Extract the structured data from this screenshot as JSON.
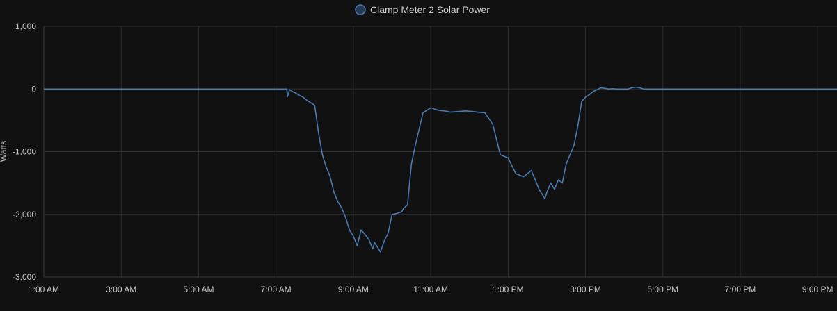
{
  "chart_data": {
    "type": "line",
    "title": "",
    "xlabel": "",
    "ylabel": "Watts",
    "ylim": [
      -3000,
      1000
    ],
    "xlim": [
      1,
      21.5
    ],
    "grid": true,
    "legend": "top-center",
    "x_tick_values": [
      1,
      3,
      5,
      7,
      9,
      11,
      13,
      15,
      17,
      19,
      21
    ],
    "x_tick_labels": [
      "1:00 AM",
      "3:00 AM",
      "5:00 AM",
      "7:00 AM",
      "9:00 AM",
      "11:00 AM",
      "1:00 PM",
      "3:00 PM",
      "5:00 PM",
      "7:00 PM",
      "9:00 PM"
    ],
    "y_tick_values": [
      1000,
      0,
      -1000,
      -2000,
      -3000
    ],
    "y_tick_labels": [
      "1,000",
      "0",
      "-1,000",
      "-2,000",
      "-3,000"
    ],
    "series": [
      {
        "name": "Clamp Meter 2 Solar Power",
        "color": "#4a7ab0",
        "legend_fill": "#243a55",
        "x": [
          1.0,
          7.28,
          7.3,
          7.35,
          7.4,
          7.45,
          7.5,
          7.6,
          7.7,
          7.8,
          7.9,
          8.0,
          8.1,
          8.2,
          8.3,
          8.35,
          8.4,
          8.5,
          8.6,
          8.7,
          8.8,
          8.9,
          9.0,
          9.1,
          9.2,
          9.3,
          9.4,
          9.5,
          9.55,
          9.6,
          9.7,
          9.8,
          9.9,
          10.0,
          10.1,
          10.15,
          10.2,
          10.25,
          10.3,
          10.4,
          10.5,
          10.6,
          10.8,
          11.0,
          11.2,
          11.35,
          11.45,
          11.5,
          11.6,
          11.7,
          11.8,
          11.9,
          12.0,
          12.1,
          12.2,
          12.4,
          12.6,
          12.8,
          13.0,
          13.2,
          13.4,
          13.6,
          13.8,
          13.95,
          14.0,
          14.1,
          14.2,
          14.3,
          14.4,
          14.5,
          14.6,
          14.7,
          14.8,
          14.9,
          15.0,
          15.1,
          15.2,
          15.3,
          15.4,
          15.5,
          15.6,
          15.7,
          15.8,
          15.9,
          16.0,
          16.1,
          16.2,
          16.3,
          16.4,
          16.5,
          16.6,
          16.7,
          16.8,
          16.9,
          17.0,
          17.1,
          17.2,
          17.25,
          21.5
        ],
        "values": [
          0,
          0,
          -120,
          -10,
          -30,
          -50,
          -60,
          -100,
          -130,
          -180,
          -220,
          -260,
          -700,
          -1050,
          -1250,
          -1320,
          -1400,
          -1650,
          -1800,
          -1900,
          -2050,
          -2250,
          -2350,
          -2500,
          -2250,
          -2320,
          -2400,
          -2550,
          -2450,
          -2500,
          -2600,
          -2420,
          -2300,
          -2000,
          -1990,
          -1980,
          -1970,
          -1960,
          -1900,
          -1850,
          -1200,
          -900,
          -380,
          -300,
          -340,
          -350,
          -360,
          -370,
          -365,
          -360,
          -355,
          -350,
          -355,
          -360,
          -370,
          -380,
          -560,
          -1050,
          -1100,
          -1350,
          -1400,
          -1300,
          -1600,
          -1750,
          -1650,
          -1500,
          -1600,
          -1450,
          -1500,
          -1200,
          -1050,
          -900,
          -600,
          -200,
          -130,
          -90,
          -40,
          -10,
          20,
          10,
          0,
          5,
          0,
          0,
          0,
          0,
          20,
          30,
          20,
          0,
          0,
          0,
          0,
          0,
          0,
          0,
          0,
          0,
          0
        ]
      }
    ]
  }
}
